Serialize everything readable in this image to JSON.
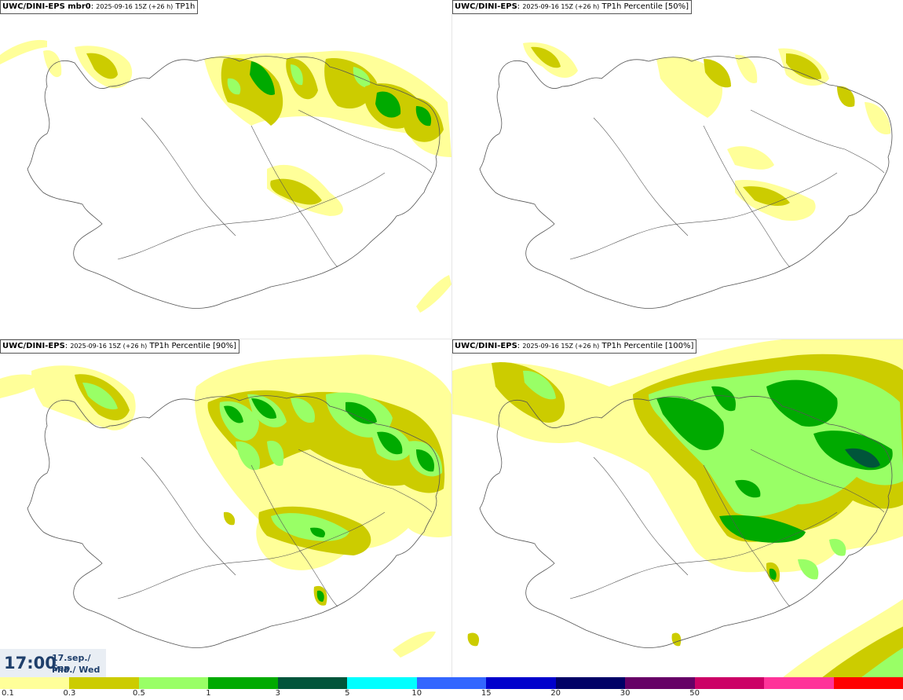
{
  "panels": [
    {
      "model": "UWC/DINI-EPS mbr0",
      "sep": ": ",
      "run": "2025-09-16 15Z (+26 h)",
      "field": "TP1h"
    },
    {
      "model": "UWC/DINI-EPS",
      "sep": ": ",
      "run": "2025-09-16 15Z (+26 h)",
      "field": "TP1h Percentile [50%]"
    },
    {
      "model": "UWC/DINI-EPS",
      "sep": ": ",
      "run": "2025-09-16 15Z (+26 h)",
      "field": "TP1h Percentile [90%]"
    },
    {
      "model": "UWC/DINI-EPS",
      "sep": ": ",
      "run": "2025-09-16 15Z (+26 h)",
      "field": "TP1h Percentile [100%]"
    }
  ],
  "valid_time": {
    "time": "17:00",
    "date": "17.sep./ Sep",
    "weekday": "Mið./ Wed"
  },
  "legend": {
    "colors": [
      "#ffff99",
      "#cccc00",
      "#99ff66",
      "#00aa00",
      "#00553a",
      "#00ffff",
      "#3366ff",
      "#0000cc",
      "#000066",
      "#660066",
      "#cc0066",
      "#ff3399",
      "#ff0000"
    ],
    "labels": [
      "0.1",
      "0.3",
      "0.5",
      "1",
      "3",
      "5",
      "10",
      "15",
      "20",
      "30",
      "50"
    ]
  },
  "precip_colors": {
    "light": "#ffff99",
    "olive": "#cccc00",
    "lightgreen": "#99ff66",
    "green": "#00aa00",
    "darkgreen": "#00553a"
  }
}
